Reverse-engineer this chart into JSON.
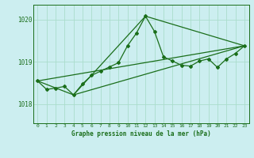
{
  "title": "Graphe pression niveau de la mer (hPa)",
  "background_color": "#cceef0",
  "grid_color": "#aaddcc",
  "line_color": "#1a6e1a",
  "x_min": -0.5,
  "x_max": 23.5,
  "y_min": 1017.55,
  "y_max": 1020.35,
  "yticks": [
    1018,
    1019,
    1020
  ],
  "xticks": [
    0,
    1,
    2,
    3,
    4,
    5,
    6,
    7,
    8,
    9,
    10,
    11,
    12,
    13,
    14,
    15,
    16,
    17,
    18,
    19,
    20,
    21,
    22,
    23
  ],
  "series1": {
    "x": [
      0,
      1,
      2,
      3,
      4,
      5,
      6,
      7,
      8,
      9,
      10,
      11,
      12,
      13,
      14,
      15,
      16,
      17,
      18,
      19,
      20,
      21,
      22,
      23
    ],
    "y": [
      1018.55,
      1018.35,
      1018.38,
      1018.42,
      1018.22,
      1018.48,
      1018.68,
      1018.78,
      1018.88,
      1018.98,
      1019.38,
      1019.68,
      1020.08,
      1019.72,
      1019.12,
      1019.02,
      1018.92,
      1018.9,
      1019.02,
      1019.07,
      1018.87,
      1019.07,
      1019.2,
      1019.38
    ]
  },
  "series2": {
    "x": [
      0,
      4,
      12,
      23
    ],
    "y": [
      1018.55,
      1018.22,
      1020.08,
      1019.38
    ]
  },
  "series3": {
    "x": [
      0,
      23
    ],
    "y": [
      1018.55,
      1019.38
    ]
  },
  "series4": {
    "x": [
      4,
      23
    ],
    "y": [
      1018.22,
      1019.38
    ]
  }
}
